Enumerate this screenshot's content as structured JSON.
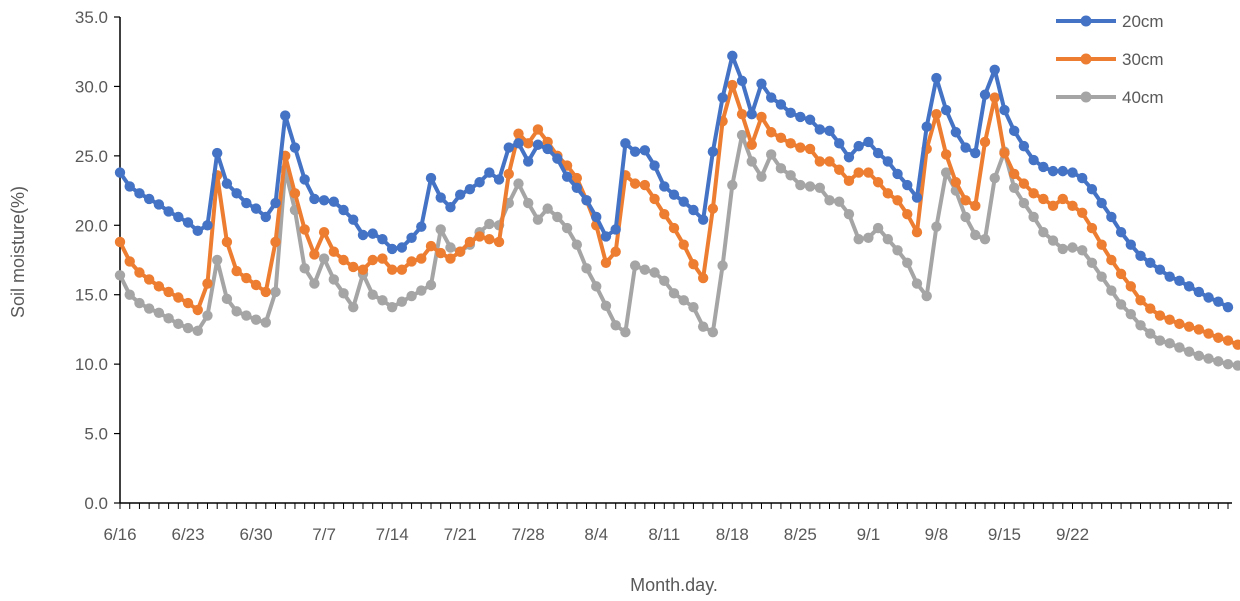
{
  "chart_data": {
    "type": "line",
    "title": "",
    "xlabel": "Month.day.",
    "ylabel": "Soil moisture(%)",
    "ylim": [
      0,
      35
    ],
    "yticks": [
      "0.0",
      "5.0",
      "10.0",
      "15.0",
      "20.0",
      "25.0",
      "30.0",
      "35.0"
    ],
    "grid": false,
    "legend_position": "top-right",
    "x_start": "6/16",
    "x_end": "9/27",
    "x_tick_labels": [
      "6/16",
      "6/23",
      "6/30",
      "7/7",
      "7/14",
      "7/21",
      "7/28",
      "8/4",
      "8/11",
      "8/18",
      "8/25",
      "9/1",
      "9/8",
      "9/15",
      "9/22"
    ],
    "series": [
      {
        "name": "20cm",
        "color": "#4472C4",
        "values": [
          23.8,
          22.8,
          22.3,
          21.9,
          21.5,
          21.0,
          20.6,
          20.2,
          19.6,
          20.0,
          25.2,
          23.0,
          22.3,
          21.6,
          21.2,
          20.6,
          21.6,
          27.9,
          25.6,
          23.3,
          21.9,
          21.8,
          21.7,
          21.1,
          20.4,
          19.3,
          19.4,
          19.0,
          18.3,
          18.4,
          19.1,
          19.9,
          23.4,
          22.0,
          21.3,
          22.2,
          22.6,
          23.1,
          23.8,
          23.3,
          25.6,
          25.9,
          24.6,
          25.8,
          25.5,
          24.8,
          23.5,
          22.7,
          21.8,
          20.6,
          19.2,
          19.7,
          25.9,
          25.3,
          25.4,
          24.3,
          22.8,
          22.2,
          21.7,
          21.1,
          20.4,
          25.3,
          29.2,
          32.2,
          30.4,
          28.0,
          30.2,
          29.2,
          28.7,
          28.1,
          27.8,
          27.6,
          26.9,
          26.8,
          25.9,
          24.9,
          25.7,
          26.0,
          25.2,
          24.6,
          23.7,
          22.9,
          22.0,
          27.1,
          30.6,
          28.3,
          26.7,
          25.6,
          25.2,
          29.4,
          31.2,
          28.3,
          26.8,
          25.7,
          24.7,
          24.2,
          23.9,
          23.9,
          23.8,
          23.4,
          22.6,
          21.6,
          20.6,
          19.5,
          18.6,
          17.8,
          17.3,
          16.8,
          16.3,
          16.0,
          15.6,
          15.2,
          14.8,
          14.5,
          14.1
        ]
      },
      {
        "name": "30cm",
        "color": "#ED7D31",
        "values": [
          18.8,
          17.4,
          16.6,
          16.1,
          15.6,
          15.2,
          14.8,
          14.4,
          13.9,
          15.8,
          23.6,
          18.8,
          16.7,
          16.2,
          15.7,
          15.2,
          18.8,
          25.0,
          22.3,
          19.7,
          17.9,
          19.5,
          18.1,
          17.5,
          17.0,
          16.8,
          17.5,
          17.6,
          16.8,
          16.8,
          17.4,
          17.6,
          18.5,
          18.0,
          17.6,
          18.1,
          18.8,
          19.2,
          19.0,
          18.8,
          23.7,
          26.6,
          25.9,
          26.9,
          26.0,
          25.0,
          24.3,
          23.4,
          21.8,
          20.0,
          17.3,
          18.1,
          23.6,
          23.0,
          22.9,
          21.9,
          20.8,
          19.8,
          18.6,
          17.2,
          16.2,
          21.2,
          27.5,
          30.1,
          28.0,
          25.8,
          27.8,
          26.7,
          26.3,
          25.9,
          25.6,
          25.5,
          24.6,
          24.6,
          24.0,
          23.2,
          23.8,
          23.8,
          23.1,
          22.3,
          21.8,
          20.8,
          19.5,
          25.5,
          28.0,
          25.1,
          23.1,
          21.8,
          21.4,
          26.0,
          29.2,
          25.2,
          23.7,
          23.0,
          22.3,
          21.9,
          21.4,
          21.9,
          21.4,
          20.9,
          19.8,
          18.6,
          17.5,
          16.5,
          15.6,
          14.6,
          14.0,
          13.5,
          13.2,
          12.9,
          12.7,
          12.5,
          12.2,
          11.9,
          11.7,
          11.4,
          11.1
        ]
      },
      {
        "name": "40cm",
        "color": "#A5A5A5",
        "values": [
          16.4,
          15.0,
          14.4,
          14.0,
          13.7,
          13.3,
          12.9,
          12.6,
          12.4,
          13.5,
          17.5,
          14.7,
          13.8,
          13.5,
          13.2,
          13.0,
          15.2,
          24.0,
          21.1,
          16.9,
          15.8,
          17.6,
          16.1,
          15.1,
          14.1,
          16.5,
          15.0,
          14.6,
          14.1,
          14.5,
          14.9,
          15.3,
          15.7,
          19.7,
          18.4,
          18.1,
          18.6,
          19.5,
          20.1,
          20.0,
          21.6,
          23.0,
          21.6,
          20.4,
          21.2,
          20.6,
          19.8,
          18.6,
          16.9,
          15.6,
          14.2,
          12.8,
          12.3,
          17.1,
          16.8,
          16.6,
          16.0,
          15.1,
          14.6,
          14.1,
          12.7,
          12.3,
          17.1,
          22.9,
          26.5,
          24.6,
          23.5,
          25.1,
          24.1,
          23.6,
          22.9,
          22.8,
          22.7,
          21.8,
          21.7,
          20.8,
          19.0,
          19.1,
          19.8,
          19.0,
          18.2,
          17.3,
          15.8,
          14.9,
          19.9,
          23.8,
          22.5,
          20.6,
          19.3,
          19.0,
          23.4,
          25.3,
          22.7,
          21.6,
          20.6,
          19.5,
          18.9,
          18.3,
          18.4,
          18.2,
          17.3,
          16.3,
          15.3,
          14.3,
          13.6,
          12.8,
          12.2,
          11.7,
          11.5,
          11.2,
          10.9,
          10.6,
          10.4,
          10.2,
          10.0,
          9.9,
          9.8
        ]
      }
    ]
  }
}
